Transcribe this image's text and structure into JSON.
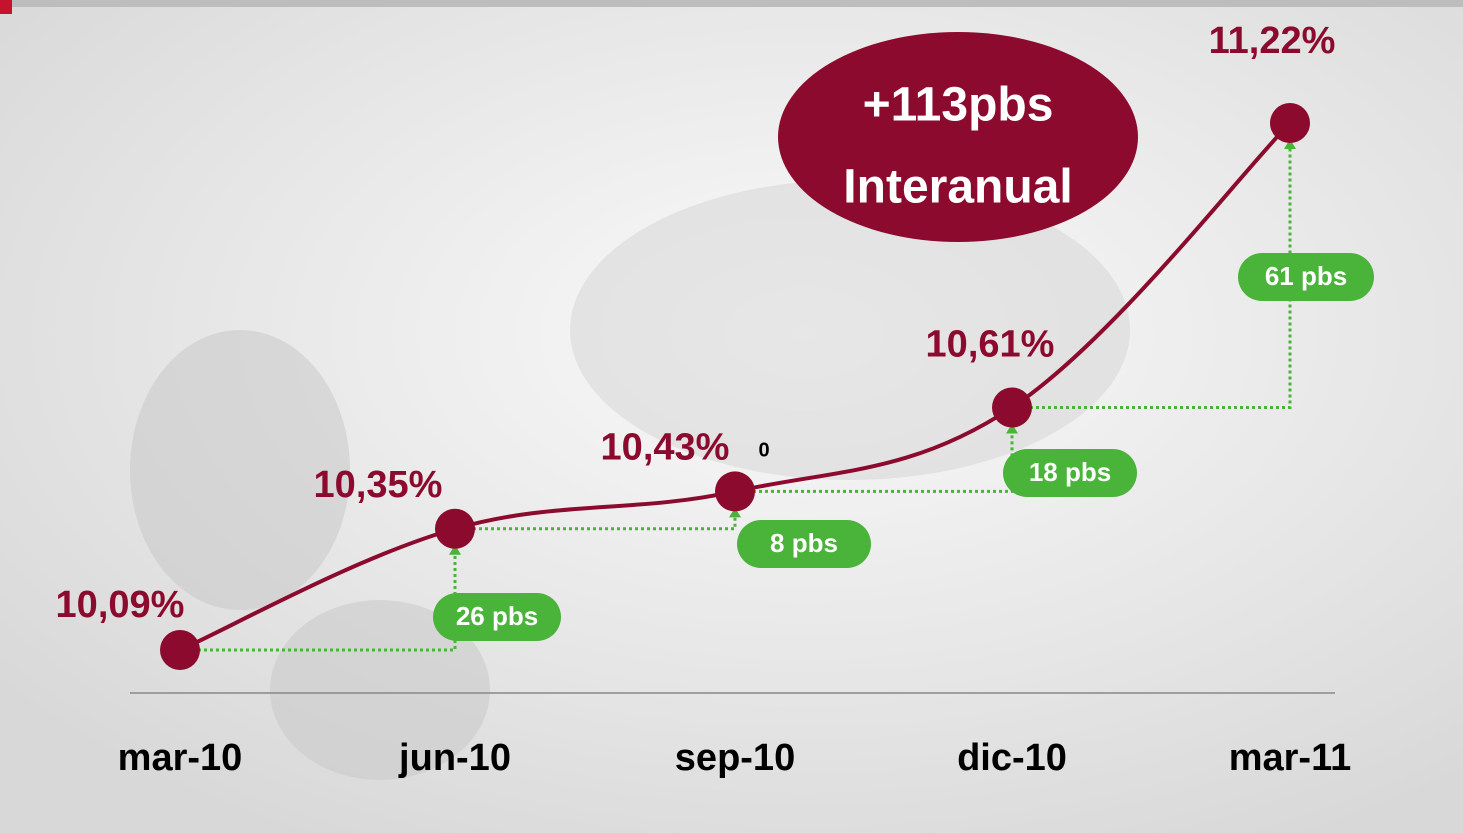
{
  "chart_data": {
    "type": "line",
    "categories": [
      "mar-10",
      "jun-10",
      "sep-10",
      "dic-10",
      "mar-11"
    ],
    "series": [
      {
        "name": null,
        "color": "#8b0a2e",
        "values": [
          10.09,
          10.35,
          10.43,
          10.61,
          11.22
        ],
        "value_labels": [
          "10,09%",
          "10,35%",
          "10,43%",
          "10,61%",
          "11,22%"
        ]
      }
    ],
    "annotations": [
      "26 pbs",
      "8 pbs",
      "18 pbs",
      "61 pbs"
    ],
    "callout": [
      "+113pbs",
      "Interanual"
    ],
    "stray_mark": "0",
    "change_color": "#4ab33a"
  }
}
